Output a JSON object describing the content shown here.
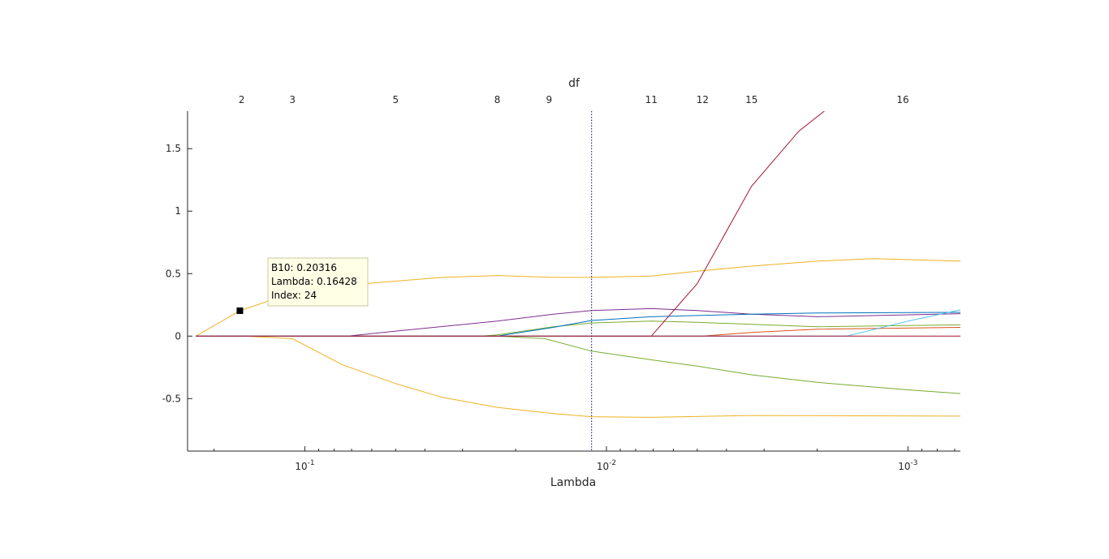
{
  "chart_data": {
    "type": "line",
    "title": "",
    "xlabel": "Lambda",
    "ylabel": "",
    "top_axis_label": "df",
    "x_scale": "log",
    "x_reversed": true,
    "xlim": [
      0.245,
      0.00067
    ],
    "ylim": [
      -0.92,
      1.8
    ],
    "grid": false,
    "legend": "none",
    "x_ticks": [
      {
        "value": 0.1,
        "base": "10",
        "exp": "-1"
      },
      {
        "value": 0.01,
        "base": "10",
        "exp": "-2"
      },
      {
        "value": 0.001,
        "base": "10",
        "exp": "-3"
      }
    ],
    "y_ticks": [
      {
        "value": 1.5,
        "label": "1.5"
      },
      {
        "value": 1,
        "label": "1"
      },
      {
        "value": 0.5,
        "label": "0.5"
      },
      {
        "value": 0,
        "label": "0"
      },
      {
        "value": -0.5,
        "label": "-0.5"
      }
    ],
    "df_ticks": [
      {
        "lambda": 0.162,
        "label": "2"
      },
      {
        "lambda": 0.11,
        "label": "3"
      },
      {
        "lambda": 0.05,
        "label": "5"
      },
      {
        "lambda": 0.023,
        "label": "8"
      },
      {
        "lambda": 0.0155,
        "label": "9"
      },
      {
        "lambda": 0.0071,
        "label": "11"
      },
      {
        "lambda": 0.0048,
        "label": "12"
      },
      {
        "lambda": 0.0033,
        "label": "15"
      },
      {
        "lambda": 0.00104,
        "label": "16"
      }
    ],
    "vline": {
      "lambda": 0.0112,
      "color": "#00007f"
    },
    "series": [
      {
        "color": "#edb120",
        "points": [
          [
            0.23,
            0
          ],
          [
            0.16428,
            0.20316
          ],
          [
            0.1,
            0.38
          ],
          [
            0.05,
            0.44
          ],
          [
            0.035,
            0.47
          ],
          [
            0.023,
            0.485
          ],
          [
            0.015,
            0.47
          ],
          [
            0.0112,
            0.47
          ],
          [
            0.0071,
            0.48
          ],
          [
            0.005,
            0.52
          ],
          [
            0.0033,
            0.56
          ],
          [
            0.002,
            0.6
          ],
          [
            0.0013,
            0.62
          ],
          [
            0.00067,
            0.6
          ]
        ]
      },
      {
        "color": "#edb120",
        "points": [
          [
            0.23,
            0
          ],
          [
            0.16,
            0
          ],
          [
            0.11,
            -0.02
          ],
          [
            0.075,
            -0.23
          ],
          [
            0.05,
            -0.38
          ],
          [
            0.035,
            -0.49
          ],
          [
            0.023,
            -0.57
          ],
          [
            0.015,
            -0.62
          ],
          [
            0.0112,
            -0.645
          ],
          [
            0.0071,
            -0.65
          ],
          [
            0.0033,
            -0.635
          ],
          [
            0.00067,
            -0.64
          ]
        ]
      },
      {
        "color": "#7e2f8e",
        "points": [
          [
            0.23,
            0
          ],
          [
            0.072,
            0
          ],
          [
            0.05,
            0.04
          ],
          [
            0.023,
            0.12
          ],
          [
            0.015,
            0.175
          ],
          [
            0.0112,
            0.205
          ],
          [
            0.0071,
            0.22
          ],
          [
            0.005,
            0.205
          ],
          [
            0.0033,
            0.175
          ],
          [
            0.002,
            0.155
          ],
          [
            0.00067,
            0.18
          ]
        ]
      },
      {
        "color": "#77ac30",
        "points": [
          [
            0.23,
            0
          ],
          [
            0.026,
            0
          ],
          [
            0.023,
            0.01
          ],
          [
            0.015,
            0.075
          ],
          [
            0.0112,
            0.105
          ],
          [
            0.0071,
            0.12
          ],
          [
            0.005,
            0.11
          ],
          [
            0.002,
            0.075
          ],
          [
            0.00067,
            0.09
          ]
        ]
      },
      {
        "color": "#77ac30",
        "points": [
          [
            0.23,
            0
          ],
          [
            0.023,
            0
          ],
          [
            0.016,
            -0.02
          ],
          [
            0.0112,
            -0.12
          ],
          [
            0.0071,
            -0.19
          ],
          [
            0.005,
            -0.24
          ],
          [
            0.0033,
            -0.31
          ],
          [
            0.002,
            -0.37
          ],
          [
            0.001,
            -0.43
          ],
          [
            0.00067,
            -0.46
          ]
        ]
      },
      {
        "color": "#0072bd",
        "points": [
          [
            0.23,
            0
          ],
          [
            0.023,
            0
          ],
          [
            0.015,
            0.07
          ],
          [
            0.0112,
            0.125
          ],
          [
            0.0071,
            0.155
          ],
          [
            0.005,
            0.165
          ],
          [
            0.0033,
            0.175
          ],
          [
            0.002,
            0.185
          ],
          [
            0.00067,
            0.19
          ]
        ]
      },
      {
        "color": "#a2142f",
        "points": [
          [
            0.23,
            0
          ],
          [
            0.0071,
            0
          ],
          [
            0.005,
            0.42
          ],
          [
            0.0033,
            1.2
          ],
          [
            0.0023,
            1.64
          ],
          [
            0.00185,
            1.82
          ]
        ]
      },
      {
        "color": "#d95319",
        "points": [
          [
            0.23,
            0
          ],
          [
            0.0048,
            0
          ],
          [
            0.0033,
            0.03
          ],
          [
            0.002,
            0.055
          ],
          [
            0.00067,
            0.07
          ]
        ]
      },
      {
        "color": "#4dbeee",
        "points": [
          [
            0.23,
            0
          ],
          [
            0.0016,
            0
          ],
          [
            0.001,
            0.12
          ],
          [
            0.00067,
            0.21
          ]
        ]
      },
      {
        "color": "#a2142f",
        "points": [
          [
            0.23,
            0
          ],
          [
            0.00067,
            0
          ]
        ]
      }
    ],
    "datatip": {
      "lambda": 0.16428,
      "value": 0.20316,
      "lines": [
        "B10: 0.20316",
        "Lambda: 0.16428",
        "Index: 24"
      ]
    }
  }
}
